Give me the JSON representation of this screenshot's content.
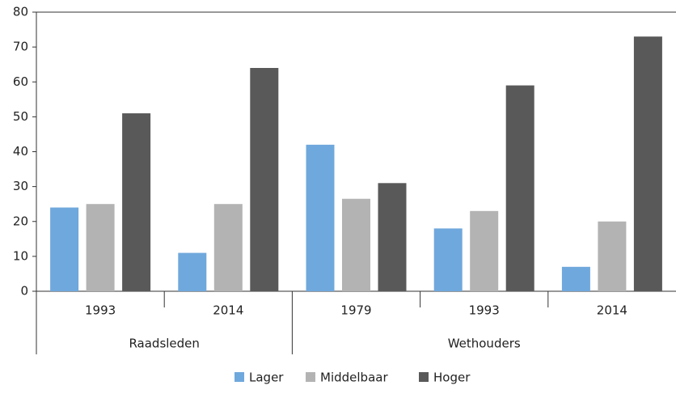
{
  "chart_data": {
    "type": "bar",
    "groups": [
      {
        "name": "Raadsleden",
        "categories": [
          "1993",
          "2014"
        ]
      },
      {
        "name": "Wethouders",
        "categories": [
          "1979",
          "1993",
          "2014"
        ]
      }
    ],
    "series": [
      {
        "name": "Lager",
        "color": "#6fa8dc",
        "values": [
          24,
          11,
          42,
          18,
          7
        ]
      },
      {
        "name": "Middelbaar",
        "color": "#b3b3b3",
        "values": [
          25,
          25,
          26.5,
          23,
          20
        ]
      },
      {
        "name": "Hoger",
        "color": "#595959",
        "values": [
          51,
          64,
          31,
          59,
          73
        ]
      }
    ],
    "ylim": [
      0,
      80
    ],
    "yticks": [
      0,
      10,
      20,
      30,
      40,
      50,
      60,
      70,
      80
    ],
    "grid": false,
    "legend": "bottom"
  }
}
